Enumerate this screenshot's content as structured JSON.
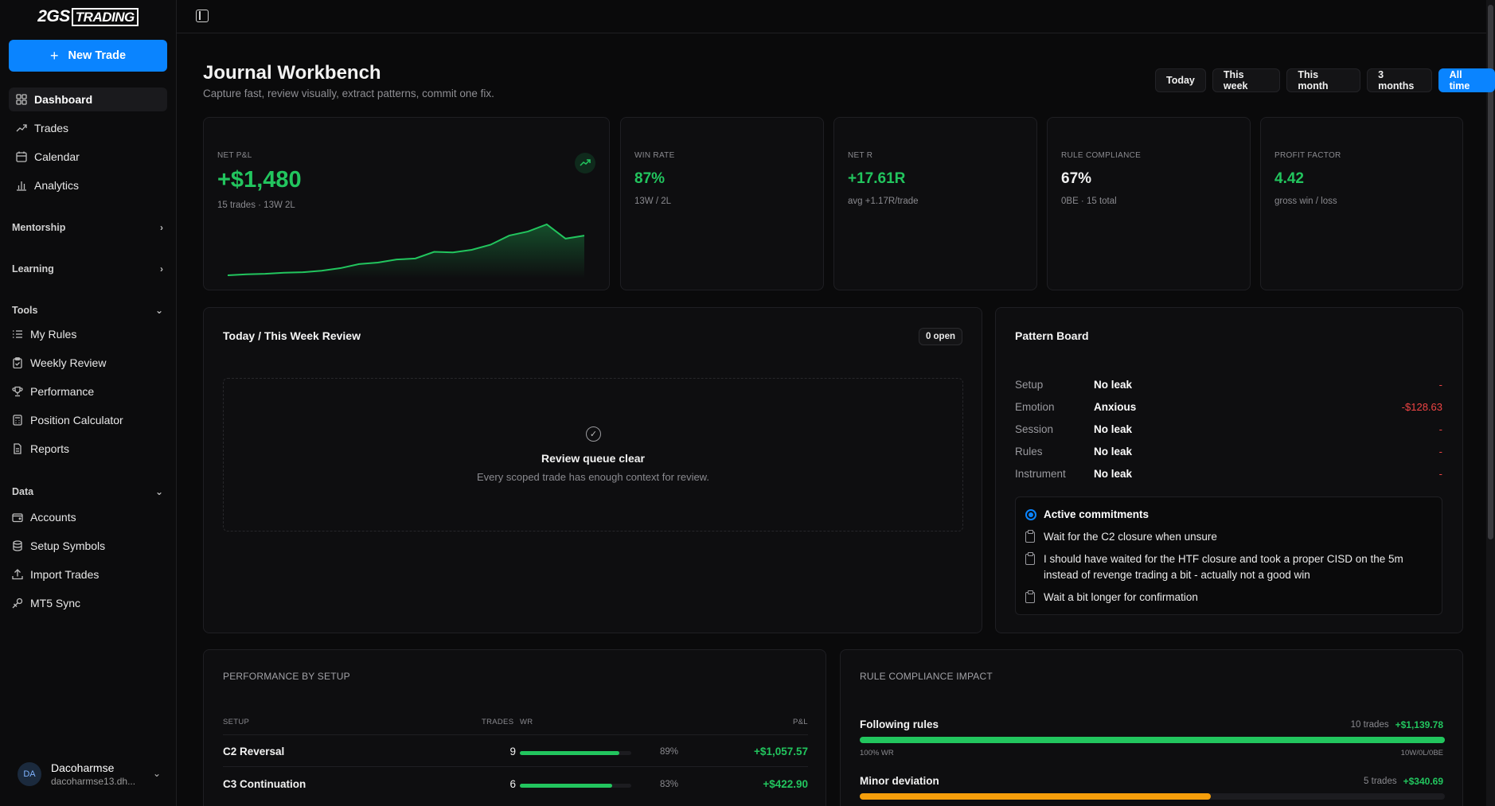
{
  "brand": {
    "logo_a": "2GS",
    "logo_b": "TRADING"
  },
  "sidebar": {
    "new_trade": "New Trade",
    "primary": [
      {
        "label": "Dashboard",
        "icon": "grid-icon"
      },
      {
        "label": "Trades",
        "icon": "trend-icon"
      },
      {
        "label": "Calendar",
        "icon": "calendar-icon"
      },
      {
        "label": "Analytics",
        "icon": "bar-chart-icon"
      }
    ],
    "sections": {
      "mentorship": "Mentorship",
      "learning": "Learning",
      "tools": "Tools",
      "data": "Data"
    },
    "tools": [
      {
        "label": "My Rules",
        "icon": "list-icon"
      },
      {
        "label": "Weekly Review",
        "icon": "clipboard-icon"
      },
      {
        "label": "Performance",
        "icon": "trophy-icon"
      },
      {
        "label": "Position Calculator",
        "icon": "calculator-icon"
      },
      {
        "label": "Reports",
        "icon": "file-icon"
      }
    ],
    "data_items": [
      {
        "label": "Accounts",
        "icon": "wallet-icon"
      },
      {
        "label": "Setup Symbols",
        "icon": "database-icon"
      },
      {
        "label": "Import Trades",
        "icon": "upload-icon"
      },
      {
        "label": "MT5 Sync",
        "icon": "sync-icon"
      }
    ],
    "user": {
      "initials": "DA",
      "name": "Dacoharmse",
      "email": "dacoharmse13.dh..."
    }
  },
  "header": {
    "title": "Journal Workbench",
    "subtitle": "Capture fast, review visually, extract patterns, commit one fix.",
    "ranges": [
      "Today",
      "This week",
      "This month",
      "3 months",
      "All time"
    ],
    "active_range": "All time"
  },
  "kpis": {
    "net_pnl": {
      "label": "NET P&L",
      "value": "+$1,480",
      "sub": "15 trades · 13W 2L"
    },
    "win_rate": {
      "label": "WIN RATE",
      "value": "87%",
      "sub": "13W / 2L"
    },
    "net_r": {
      "label": "NET R",
      "value": "+17.61R",
      "sub": "avg +1.17R/trade"
    },
    "rule_compliance": {
      "label": "RULE COMPLIANCE",
      "value": "67%",
      "sub": "0BE · 15 total"
    },
    "profit_factor": {
      "label": "PROFIT FACTOR",
      "value": "4.42",
      "sub": "gross win / loss"
    }
  },
  "sparkline": [
    0,
    2,
    3,
    5,
    6,
    9,
    14,
    22,
    25,
    31,
    33,
    46,
    45,
    50,
    60,
    78,
    86,
    100,
    72,
    78
  ],
  "review": {
    "title": "Today / This Week Review",
    "badge": "0 open",
    "empty_title": "Review queue clear",
    "empty_sub": "Every scoped trade has enough context for review."
  },
  "pattern_board": {
    "title": "Pattern Board",
    "rows": [
      {
        "category": "Setup",
        "value": "No leak",
        "amount": "-"
      },
      {
        "category": "Emotion",
        "value": "Anxious",
        "amount": "-$128.63"
      },
      {
        "category": "Session",
        "value": "No leak",
        "amount": "-"
      },
      {
        "category": "Rules",
        "value": "No leak",
        "amount": "-"
      },
      {
        "category": "Instrument",
        "value": "No leak",
        "amount": "-"
      }
    ],
    "commitments_title": "Active commitments",
    "commitments": [
      "Wait for the C2 closure when unsure",
      "I should have waited for the HTF closure and took a proper CISD on the 5m instead of revenge trading a bit - actually not a good win",
      "Wait a bit longer for confirmation"
    ]
  },
  "performance_by_setup": {
    "title": "PERFORMANCE BY SETUP",
    "headers": {
      "setup": "SETUP",
      "trades": "TRADES",
      "wr": "WR",
      "pnl": "P&L"
    },
    "rows": [
      {
        "name": "C2 Reversal",
        "trades": "9",
        "wr": "89%",
        "wr_value": 0.89,
        "pnl": "+$1,057.57"
      },
      {
        "name": "C3 Continuation",
        "trades": "6",
        "wr": "83%",
        "wr_value": 0.83,
        "pnl": "+$422.90"
      }
    ]
  },
  "rule_compliance_impact": {
    "title": "RULE COMPLIANCE IMPACT",
    "rows": [
      {
        "label": "Following rules",
        "trades": "10 trades",
        "pnl": "+$1,139.78",
        "wr_label": "100% WR",
        "record": "10W/0L/0BE",
        "fill": 1.0,
        "color": "#22c55e"
      },
      {
        "label": "Minor deviation",
        "trades": "5 trades",
        "pnl": "+$340.69",
        "fill": 0.6,
        "color": "#f59e0b"
      }
    ]
  },
  "colors": {
    "accent": "#0a84ff",
    "positive": "#22c55e",
    "negative": "#ef4444",
    "warning": "#f59e0b"
  }
}
